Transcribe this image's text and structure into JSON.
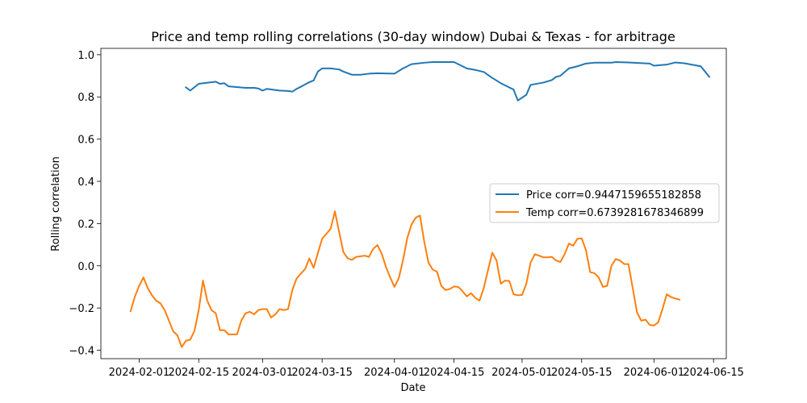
{
  "chart_data": {
    "type": "line",
    "title": "Price and temp rolling correlations (30-day window) Dubai & Texas - for arbitrage",
    "xlabel": "Date",
    "ylabel": "Rolling correlation",
    "xlim": [
      "2024-01-23",
      "2024-06-18"
    ],
    "ylim": [
      -0.44,
      1.03
    ],
    "x_ticks": [
      "2024-02-01",
      "2024-02-15",
      "2024-03-01",
      "2024-03-15",
      "2024-04-01",
      "2024-04-15",
      "2024-05-01",
      "2024-05-15",
      "2024-06-01",
      "2024-06-15"
    ],
    "y_ticks": [
      -0.4,
      -0.2,
      0.0,
      0.2,
      0.4,
      0.6,
      0.8,
      1.0
    ],
    "y_tick_labels": [
      "−0.4",
      "−0.2",
      "0.0",
      "0.2",
      "0.4",
      "0.6",
      "0.8",
      "1.0"
    ],
    "grid": false,
    "legend_position": "center-right",
    "series": [
      {
        "name": "Price corr=0.9447159655182858",
        "color": "#1f77b4",
        "points": [
          [
            "2024-02-12",
            0.845
          ],
          [
            "2024-02-13",
            0.83
          ],
          [
            "2024-02-15",
            0.862
          ],
          [
            "2024-02-19",
            0.872
          ],
          [
            "2024-02-20",
            0.862
          ],
          [
            "2024-02-21",
            0.865
          ],
          [
            "2024-02-22",
            0.85
          ],
          [
            "2024-02-26",
            0.843
          ],
          [
            "2024-02-28",
            0.843
          ],
          [
            "2024-02-29",
            0.84
          ],
          [
            "2024-03-01",
            0.83
          ],
          [
            "2024-03-02",
            0.838
          ],
          [
            "2024-03-05",
            0.83
          ],
          [
            "2024-03-07",
            0.828
          ],
          [
            "2024-03-08",
            0.825
          ],
          [
            "2024-03-09",
            0.838
          ],
          [
            "2024-03-10",
            0.848
          ],
          [
            "2024-03-12",
            0.87
          ],
          [
            "2024-03-13",
            0.878
          ],
          [
            "2024-03-14",
            0.92
          ],
          [
            "2024-03-15",
            0.935
          ],
          [
            "2024-03-17",
            0.935
          ],
          [
            "2024-03-19",
            0.93
          ],
          [
            "2024-03-20",
            0.92
          ],
          [
            "2024-03-22",
            0.905
          ],
          [
            "2024-03-24",
            0.905
          ],
          [
            "2024-03-26",
            0.91
          ],
          [
            "2024-03-28",
            0.912
          ],
          [
            "2024-04-01",
            0.91
          ],
          [
            "2024-04-03",
            0.935
          ],
          [
            "2024-04-05",
            0.955
          ],
          [
            "2024-04-08",
            0.962
          ],
          [
            "2024-04-10",
            0.965
          ],
          [
            "2024-04-15",
            0.965
          ],
          [
            "2024-04-18",
            0.935
          ],
          [
            "2024-04-20",
            0.928
          ],
          [
            "2024-04-22",
            0.918
          ],
          [
            "2024-04-24",
            0.89
          ],
          [
            "2024-04-26",
            0.865
          ],
          [
            "2024-04-29",
            0.835
          ],
          [
            "2024-04-30",
            0.783
          ],
          [
            "2024-05-02",
            0.81
          ],
          [
            "2024-05-03",
            0.857
          ],
          [
            "2024-05-06",
            0.868
          ],
          [
            "2024-05-08",
            0.88
          ],
          [
            "2024-05-09",
            0.895
          ],
          [
            "2024-05-10",
            0.9
          ],
          [
            "2024-05-12",
            0.935
          ],
          [
            "2024-05-14",
            0.945
          ],
          [
            "2024-05-16",
            0.958
          ],
          [
            "2024-05-18",
            0.962
          ],
          [
            "2024-05-22",
            0.962
          ],
          [
            "2024-05-23",
            0.965
          ],
          [
            "2024-05-26",
            0.963
          ],
          [
            "2024-05-31",
            0.958
          ],
          [
            "2024-06-01",
            0.948
          ],
          [
            "2024-06-04",
            0.953
          ],
          [
            "2024-06-06",
            0.963
          ],
          [
            "2024-06-08",
            0.96
          ],
          [
            "2024-06-12",
            0.945
          ],
          [
            "2024-06-14",
            0.895
          ]
        ]
      },
      {
        "name": "Temp corr=0.6739281678346899",
        "color": "#ff7f0e",
        "points": [
          [
            "2024-01-30",
            -0.215
          ],
          [
            "2024-01-31",
            -0.145
          ],
          [
            "2024-02-01",
            -0.095
          ],
          [
            "2024-02-02",
            -0.055
          ],
          [
            "2024-02-03",
            -0.105
          ],
          [
            "2024-02-04",
            -0.14
          ],
          [
            "2024-02-05",
            -0.165
          ],
          [
            "2024-02-06",
            -0.178
          ],
          [
            "2024-02-07",
            -0.21
          ],
          [
            "2024-02-08",
            -0.26
          ],
          [
            "2024-02-09",
            -0.31
          ],
          [
            "2024-02-10",
            -0.33
          ],
          [
            "2024-02-11",
            -0.385
          ],
          [
            "2024-02-12",
            -0.355
          ],
          [
            "2024-02-13",
            -0.35
          ],
          [
            "2024-02-14",
            -0.308
          ],
          [
            "2024-02-15",
            -0.21
          ],
          [
            "2024-02-16",
            -0.07
          ],
          [
            "2024-02-17",
            -0.165
          ],
          [
            "2024-02-18",
            -0.21
          ],
          [
            "2024-02-19",
            -0.225
          ],
          [
            "2024-02-20",
            -0.305
          ],
          [
            "2024-02-21",
            -0.305
          ],
          [
            "2024-02-22",
            -0.325
          ],
          [
            "2024-02-24",
            -0.325
          ],
          [
            "2024-02-25",
            -0.26
          ],
          [
            "2024-02-26",
            -0.225
          ],
          [
            "2024-02-27",
            -0.218
          ],
          [
            "2024-02-28",
            -0.23
          ],
          [
            "2024-02-29",
            -0.21
          ],
          [
            "2024-03-01",
            -0.205
          ],
          [
            "2024-03-02",
            -0.205
          ],
          [
            "2024-03-03",
            -0.245
          ],
          [
            "2024-03-04",
            -0.23
          ],
          [
            "2024-03-05",
            -0.205
          ],
          [
            "2024-03-06",
            -0.21
          ],
          [
            "2024-03-07",
            -0.205
          ],
          [
            "2024-03-08",
            -0.115
          ],
          [
            "2024-03-09",
            -0.06
          ],
          [
            "2024-03-11",
            -0.015
          ],
          [
            "2024-03-12",
            0.035
          ],
          [
            "2024-03-13",
            -0.01
          ],
          [
            "2024-03-14",
            0.06
          ],
          [
            "2024-03-15",
            0.128
          ],
          [
            "2024-03-17",
            0.175
          ],
          [
            "2024-03-18",
            0.258
          ],
          [
            "2024-03-19",
            0.16
          ],
          [
            "2024-03-20",
            0.065
          ],
          [
            "2024-03-21",
            0.035
          ],
          [
            "2024-03-22",
            0.028
          ],
          [
            "2024-03-23",
            0.042
          ],
          [
            "2024-03-24",
            0.045
          ],
          [
            "2024-03-25",
            0.048
          ],
          [
            "2024-03-26",
            0.042
          ],
          [
            "2024-03-27",
            0.08
          ],
          [
            "2024-03-28",
            0.098
          ],
          [
            "2024-03-29",
            0.058
          ],
          [
            "2024-03-30",
            -0.005
          ],
          [
            "2024-03-31",
            -0.055
          ],
          [
            "2024-04-01",
            -0.1
          ],
          [
            "2024-04-02",
            -0.06
          ],
          [
            "2024-04-03",
            0.025
          ],
          [
            "2024-04-04",
            0.13
          ],
          [
            "2024-04-05",
            0.195
          ],
          [
            "2024-04-06",
            0.228
          ],
          [
            "2024-04-07",
            0.238
          ],
          [
            "2024-04-08",
            0.115
          ],
          [
            "2024-04-09",
            0.015
          ],
          [
            "2024-04-10",
            -0.018
          ],
          [
            "2024-04-11",
            -0.028
          ],
          [
            "2024-04-12",
            -0.095
          ],
          [
            "2024-04-13",
            -0.115
          ],
          [
            "2024-04-14",
            -0.11
          ],
          [
            "2024-04-15",
            -0.098
          ],
          [
            "2024-04-16",
            -0.1
          ],
          [
            "2024-04-17",
            -0.12
          ],
          [
            "2024-04-18",
            -0.145
          ],
          [
            "2024-04-19",
            -0.13
          ],
          [
            "2024-04-20",
            -0.152
          ],
          [
            "2024-04-21",
            -0.165
          ],
          [
            "2024-04-22",
            -0.105
          ],
          [
            "2024-04-23",
            -0.02
          ],
          [
            "2024-04-24",
            0.062
          ],
          [
            "2024-04-25",
            0.025
          ],
          [
            "2024-04-26",
            -0.085
          ],
          [
            "2024-04-27",
            -0.07
          ],
          [
            "2024-04-28",
            -0.072
          ],
          [
            "2024-04-29",
            -0.135
          ],
          [
            "2024-04-30",
            -0.14
          ],
          [
            "2024-05-01",
            -0.138
          ],
          [
            "2024-05-02",
            -0.085
          ],
          [
            "2024-05-03",
            0.015
          ],
          [
            "2024-05-04",
            0.055
          ],
          [
            "2024-05-05",
            0.048
          ],
          [
            "2024-05-06",
            0.04
          ],
          [
            "2024-05-07",
            0.04
          ],
          [
            "2024-05-08",
            0.042
          ],
          [
            "2024-05-09",
            0.025
          ],
          [
            "2024-05-10",
            0.018
          ],
          [
            "2024-05-11",
            0.055
          ],
          [
            "2024-05-12",
            0.105
          ],
          [
            "2024-05-13",
            0.095
          ],
          [
            "2024-05-14",
            0.128
          ],
          [
            "2024-05-15",
            0.13
          ],
          [
            "2024-05-16",
            0.075
          ],
          [
            "2024-05-17",
            -0.03
          ],
          [
            "2024-05-18",
            -0.035
          ],
          [
            "2024-05-19",
            -0.055
          ],
          [
            "2024-05-20",
            -0.1
          ],
          [
            "2024-05-21",
            -0.095
          ],
          [
            "2024-05-22",
            0.0
          ],
          [
            "2024-05-23",
            0.032
          ],
          [
            "2024-05-24",
            0.025
          ],
          [
            "2024-05-25",
            0.008
          ],
          [
            "2024-05-26",
            0.008
          ],
          [
            "2024-05-27",
            -0.105
          ],
          [
            "2024-05-28",
            -0.22
          ],
          [
            "2024-05-29",
            -0.26
          ],
          [
            "2024-05-30",
            -0.255
          ],
          [
            "2024-05-31",
            -0.28
          ],
          [
            "2024-06-01",
            -0.283
          ],
          [
            "2024-06-02",
            -0.268
          ],
          [
            "2024-06-03",
            -0.205
          ],
          [
            "2024-06-04",
            -0.135
          ],
          [
            "2024-06-05",
            -0.148
          ],
          [
            "2024-06-06",
            -0.155
          ],
          [
            "2024-06-07",
            -0.16
          ]
        ]
      }
    ]
  }
}
